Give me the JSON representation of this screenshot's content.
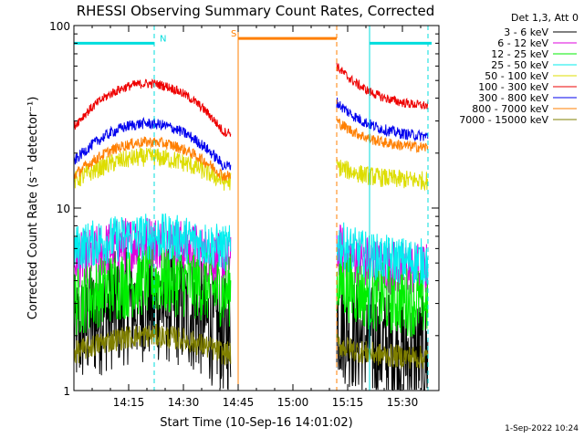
{
  "chart_data": {
    "type": "line",
    "title": "RHESSI Observing Summary Count Rates, Corrected",
    "xlabel": "Start Time (10-Sep-16 14:01:02)",
    "ylabel": "Corrected Count Rate (s⁻¹ detector⁻¹)",
    "yscale": "log",
    "ylim": [
      1,
      100
    ],
    "xlim_minutes": [
      0,
      100
    ],
    "x_ticks": [
      {
        "label": "14:15",
        "minute": 15
      },
      {
        "label": "14:30",
        "minute": 30
      },
      {
        "label": "14:45",
        "minute": 45
      },
      {
        "label": "15:00",
        "minute": 60
      },
      {
        "label": "15:15",
        "minute": 75
      },
      {
        "label": "15:30",
        "minute": 90
      }
    ],
    "y_ticks": [
      "1",
      "10",
      "100"
    ],
    "legend_title": "Det 1,3, Att 0",
    "legend_placement": "right",
    "data_gap_minutes": [
      43,
      72
    ],
    "series": [
      {
        "name": "3 - 6 keV",
        "color": "#000000",
        "pre_start": 2.0,
        "pre_peak": 3.0,
        "pre_end": 2.0,
        "post_start": 2.5,
        "post_end": 1.5,
        "noise": 0.75
      },
      {
        "name": "6 - 12 keV",
        "color": "#dd00dd",
        "pre_start": 5.0,
        "pre_peak": 6.5,
        "pre_end": 5.0,
        "post_start": 6.0,
        "post_end": 4.5,
        "noise": 0.35
      },
      {
        "name": "12 - 25 keV",
        "color": "#00ee00",
        "pre_start": 3.0,
        "pre_peak": 4.0,
        "pre_end": 3.5,
        "post_start": 4.0,
        "post_end": 3.0,
        "noise": 0.45
      },
      {
        "name": "25 - 50 keV",
        "color": "#00eeee",
        "pre_start": 6.0,
        "pre_peak": 7.0,
        "pre_end": 6.0,
        "post_start": 6.5,
        "post_end": 5.0,
        "noise": 0.3
      },
      {
        "name": "50 - 100 keV",
        "color": "#dddd00",
        "pre_start": 14.0,
        "pre_peak": 19.0,
        "pre_end": 14.0,
        "post_start": 17.0,
        "post_end": 14.0,
        "noise": 0.12
      },
      {
        "name": "100 - 300 keV",
        "color": "#ee0000",
        "pre_start": 28.0,
        "pre_peak": 48.0,
        "pre_end": 26.0,
        "post_start": 60.0,
        "post_end": 35.0,
        "noise": 0.06
      },
      {
        "name": "300 - 800 keV",
        "color": "#0000ee",
        "pre_start": 18.0,
        "pre_peak": 29.0,
        "pre_end": 17.0,
        "post_start": 38.0,
        "post_end": 24.0,
        "noise": 0.07
      },
      {
        "name": "800 - 7000 keV",
        "color": "#ff7f00",
        "pre_start": 15.0,
        "pre_peak": 23.0,
        "pre_end": 15.0,
        "post_start": 30.0,
        "post_end": 21.0,
        "noise": 0.07
      },
      {
        "name": "7000 - 15000 keV",
        "color": "#7f7f00",
        "pre_start": 1.6,
        "pre_peak": 2.0,
        "pre_end": 1.6,
        "post_start": 1.8,
        "post_end": 1.5,
        "noise": 0.15
      }
    ],
    "flags": [
      {
        "label": "N",
        "color": "#00dddd",
        "minute_start": 0,
        "minute_end": 22,
        "y": 80
      },
      {
        "label": "",
        "color": "#00dddd",
        "minute_start": 81,
        "minute_end": 98,
        "y": 80
      },
      {
        "label": "S",
        "color": "#ff7f00",
        "minute_start": 45,
        "minute_end": 72,
        "y": 85
      }
    ],
    "vlines": [
      {
        "minute": 22,
        "color": "#00dddd",
        "dashed": true
      },
      {
        "minute": 97,
        "color": "#00dddd",
        "dashed": true
      },
      {
        "minute": 45,
        "color": "#ff7f00",
        "dashed": false
      },
      {
        "minute": 72,
        "color": "#ff7f00",
        "dashed": true
      },
      {
        "minute": 81,
        "color": "#00dddd",
        "dashed": false
      }
    ]
  },
  "footer": {
    "timestamp": "1-Sep-2022 10:24"
  }
}
